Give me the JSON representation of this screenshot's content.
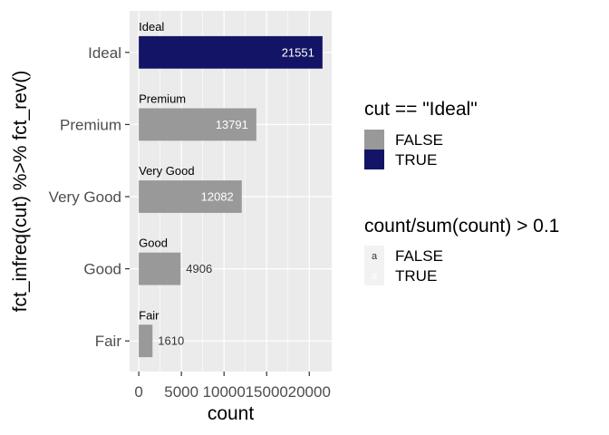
{
  "chart_data": {
    "type": "bar",
    "orientation": "horizontal",
    "categories": [
      "Ideal",
      "Premium",
      "Very Good",
      "Good",
      "Fair"
    ],
    "values": [
      21551,
      13791,
      12082,
      4906,
      1610
    ],
    "highlight": [
      true,
      false,
      false,
      false,
      false
    ],
    "label_inside": [
      true,
      true,
      true,
      false,
      false
    ],
    "xlabel": "count",
    "ylabel": "fct_infreq(cut) %>% fct_rev()",
    "xlim": [
      -1078,
      22629
    ],
    "x_ticks": [
      0,
      5000,
      10000,
      15000,
      20000
    ],
    "x_tick_labels": [
      "0",
      "5000",
      "10000",
      "15000",
      "20000"
    ],
    "grid": true,
    "legend_position": "right",
    "colors": {
      "bar_false": "#999999",
      "bar_true": "#141466",
      "panel_bg": "#ebebeb",
      "grid": "#ffffff",
      "label_inside": "#ffffff",
      "label_outside": "#333333"
    },
    "legends": [
      {
        "title": "cut == \"Ideal\"",
        "items": [
          {
            "label": "FALSE",
            "color": "#999999"
          },
          {
            "label": "TRUE",
            "color": "#141466"
          }
        ]
      },
      {
        "title": "count/sum(count) > 0.1",
        "items": [
          {
            "label": "FALSE",
            "key_text": "a",
            "text_color": "#333333"
          },
          {
            "label": "TRUE",
            "key_text": "a",
            "text_color": "#ffffff"
          }
        ]
      }
    ]
  }
}
